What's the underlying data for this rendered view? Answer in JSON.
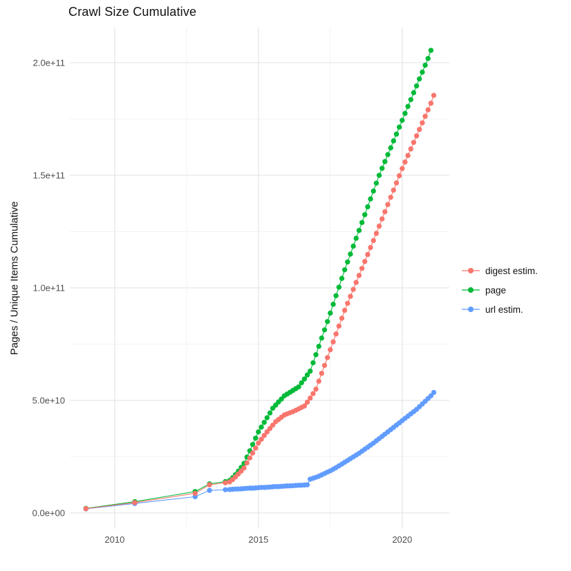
{
  "chart": {
    "title": "Crawl Size Cumulative",
    "y_axis_title": "Pages / Unique Items Cumulative",
    "legend_labels": [
      "digest estim.",
      "page",
      "url estim."
    ]
  },
  "chart_data": {
    "type": "line",
    "title": "Crawl Size Cumulative",
    "xlabel": "",
    "ylabel": "Pages / Unique Items Cumulative",
    "value_unit_note": "y values are in billions (1e9) of pages / unique items",
    "xlim": [
      2008.44,
      2021.64
    ],
    "ylim_e9": [
      -7.1,
      215.6
    ],
    "grid": true,
    "legend_position": "right",
    "colors": {
      "grid_major": "#E7E7E7",
      "grid_minor": "#F1F1F1",
      "tick_label": "#4D4D4D",
      "digest": "#F8766D",
      "page": "#00BA38",
      "url": "#619CFF"
    },
    "x_ticks": [
      {
        "v": 2010,
        "label": "2010"
      },
      {
        "v": 2015,
        "label": "2015"
      },
      {
        "v": 2020,
        "label": "2020"
      }
    ],
    "x_minor": [
      2012.5,
      2017.5
    ],
    "y_ticks": [
      {
        "v": 0,
        "label": "0.0e+00"
      },
      {
        "v": 50,
        "label": "5.0e+10"
      },
      {
        "v": 100,
        "label": "1.0e+11"
      },
      {
        "v": 150,
        "label": "1.5e+11"
      },
      {
        "v": 200,
        "label": "2.0e+11"
      }
    ],
    "y_minor": [
      25,
      75,
      125,
      175
    ],
    "series": [
      {
        "name": "digest estim.",
        "color": "#F8766D",
        "z": 3,
        "points": [
          [
            2009.0,
            1.9
          ],
          [
            2010.7,
            4.6
          ],
          [
            2012.8,
            8.7
          ],
          [
            2013.3,
            12.5
          ],
          [
            2013.85,
            13.4
          ],
          [
            2014.0,
            13.8
          ],
          [
            2014.1,
            14.8
          ],
          [
            2014.2,
            16.0
          ],
          [
            2014.3,
            17.3
          ],
          [
            2014.4,
            18.6
          ],
          [
            2014.5,
            20.0
          ],
          [
            2014.6,
            22.2
          ],
          [
            2014.7,
            24.4
          ],
          [
            2014.8,
            26.6
          ],
          [
            2014.9,
            28.8
          ],
          [
            2015.0,
            31.0
          ],
          [
            2015.1,
            32.7
          ],
          [
            2015.2,
            34.4
          ],
          [
            2015.3,
            36.0
          ],
          [
            2015.4,
            37.5
          ],
          [
            2015.5,
            39.0
          ],
          [
            2015.6,
            40.5
          ],
          [
            2015.7,
            41.5
          ],
          [
            2015.8,
            42.5
          ],
          [
            2015.9,
            43.5
          ],
          [
            2016.0,
            44.0
          ],
          [
            2016.1,
            44.5
          ],
          [
            2016.2,
            45.0
          ],
          [
            2016.3,
            45.6
          ],
          [
            2016.4,
            46.2
          ],
          [
            2016.5,
            46.9
          ],
          [
            2016.6,
            47.5
          ],
          [
            2016.7,
            49.2
          ],
          [
            2016.8,
            51.0
          ],
          [
            2016.9,
            53.0
          ],
          [
            2017.0,
            55.0
          ],
          [
            2017.1,
            58.5
          ],
          [
            2017.2,
            62.0
          ],
          [
            2017.3,
            65.5
          ],
          [
            2017.4,
            69.0
          ],
          [
            2017.5,
            72.5
          ],
          [
            2017.6,
            76.0
          ],
          [
            2017.7,
            79.5
          ],
          [
            2017.8,
            83.0
          ],
          [
            2017.9,
            86.5
          ],
          [
            2018.0,
            90.0
          ],
          [
            2018.1,
            93.1
          ],
          [
            2018.2,
            96.2
          ],
          [
            2018.3,
            99.3
          ],
          [
            2018.4,
            102.4
          ],
          [
            2018.5,
            105.5
          ],
          [
            2018.6,
            108.6
          ],
          [
            2018.7,
            111.7
          ],
          [
            2018.8,
            114.8
          ],
          [
            2018.9,
            117.9
          ],
          [
            2019.0,
            121.0
          ],
          [
            2019.1,
            124.2
          ],
          [
            2019.2,
            127.4
          ],
          [
            2019.3,
            130.6
          ],
          [
            2019.4,
            133.8
          ],
          [
            2019.5,
            137.0
          ],
          [
            2019.6,
            140.2
          ],
          [
            2019.7,
            143.4
          ],
          [
            2019.8,
            146.6
          ],
          [
            2019.9,
            149.8
          ],
          [
            2020.0,
            153.0
          ],
          [
            2020.1,
            155.9
          ],
          [
            2020.2,
            158.8
          ],
          [
            2020.3,
            161.7
          ],
          [
            2020.4,
            164.6
          ],
          [
            2020.5,
            167.5
          ],
          [
            2020.6,
            170.4
          ],
          [
            2020.7,
            173.3
          ],
          [
            2020.8,
            176.2
          ],
          [
            2020.9,
            179.1
          ],
          [
            2021.0,
            182.0
          ],
          [
            2021.1,
            185.5
          ]
        ]
      },
      {
        "name": "page",
        "color": "#00BA38",
        "z": 1,
        "points": [
          [
            2009.0,
            2.0
          ],
          [
            2010.7,
            5.0
          ],
          [
            2012.8,
            9.5
          ],
          [
            2013.3,
            12.9
          ],
          [
            2013.85,
            13.9
          ],
          [
            2014.0,
            14.4
          ],
          [
            2014.1,
            15.6
          ],
          [
            2014.2,
            17.0
          ],
          [
            2014.3,
            18.5
          ],
          [
            2014.4,
            20.2
          ],
          [
            2014.5,
            22.0
          ],
          [
            2014.6,
            24.8
          ],
          [
            2014.7,
            27.6
          ],
          [
            2014.8,
            30.4
          ],
          [
            2014.9,
            33.2
          ],
          [
            2015.0,
            36.0
          ],
          [
            2015.1,
            38.1
          ],
          [
            2015.2,
            40.2
          ],
          [
            2015.3,
            42.3
          ],
          [
            2015.4,
            44.4
          ],
          [
            2015.5,
            46.5
          ],
          [
            2015.6,
            47.9
          ],
          [
            2015.7,
            49.3
          ],
          [
            2015.8,
            50.6
          ],
          [
            2015.9,
            52.0
          ],
          [
            2016.0,
            52.8
          ],
          [
            2016.1,
            53.6
          ],
          [
            2016.2,
            54.4
          ],
          [
            2016.3,
            55.2
          ],
          [
            2016.4,
            56.0
          ],
          [
            2016.5,
            57.8
          ],
          [
            2016.6,
            59.5
          ],
          [
            2016.7,
            61.3
          ],
          [
            2016.8,
            63.0
          ],
          [
            2016.9,
            66.7
          ],
          [
            2017.0,
            70.3
          ],
          [
            2017.1,
            74.0
          ],
          [
            2017.2,
            77.7
          ],
          [
            2017.3,
            81.3
          ],
          [
            2017.4,
            85.0
          ],
          [
            2017.5,
            88.8
          ],
          [
            2017.6,
            92.7
          ],
          [
            2017.7,
            96.5
          ],
          [
            2017.8,
            100.3
          ],
          [
            2017.9,
            104.2
          ],
          [
            2018.0,
            108.0
          ],
          [
            2018.1,
            111.5
          ],
          [
            2018.2,
            115.0
          ],
          [
            2018.3,
            118.5
          ],
          [
            2018.4,
            122.0
          ],
          [
            2018.5,
            125.5
          ],
          [
            2018.6,
            129.0
          ],
          [
            2018.7,
            132.5
          ],
          [
            2018.8,
            136.0
          ],
          [
            2018.9,
            139.5
          ],
          [
            2019.0,
            143.0
          ],
          [
            2019.1,
            146.5
          ],
          [
            2019.2,
            150.0
          ],
          [
            2019.3,
            153.1
          ],
          [
            2019.4,
            156.1
          ],
          [
            2019.5,
            159.2
          ],
          [
            2019.6,
            162.2
          ],
          [
            2019.7,
            165.3
          ],
          [
            2019.8,
            168.3
          ],
          [
            2019.9,
            171.4
          ],
          [
            2020.0,
            174.4
          ],
          [
            2020.1,
            177.5
          ],
          [
            2020.2,
            180.6
          ],
          [
            2020.3,
            183.6
          ],
          [
            2020.4,
            186.7
          ],
          [
            2020.5,
            189.7
          ],
          [
            2020.6,
            192.8
          ],
          [
            2020.7,
            195.8
          ],
          [
            2020.8,
            198.9
          ],
          [
            2020.9,
            201.9
          ],
          [
            2021.0,
            205.5
          ]
        ]
      },
      {
        "name": "url estim.",
        "color": "#619CFF",
        "z": 2,
        "points": [
          [
            2009.0,
            1.8
          ],
          [
            2010.7,
            4.2
          ],
          [
            2012.8,
            7.2
          ],
          [
            2013.3,
            10.0
          ],
          [
            2013.85,
            10.3
          ],
          [
            2014.0,
            10.4
          ],
          [
            2014.1,
            10.5
          ],
          [
            2014.2,
            10.6
          ],
          [
            2014.3,
            10.6
          ],
          [
            2014.4,
            10.7
          ],
          [
            2014.5,
            10.8
          ],
          [
            2014.6,
            10.9
          ],
          [
            2014.7,
            11.0
          ],
          [
            2014.8,
            11.0
          ],
          [
            2014.9,
            11.1
          ],
          [
            2015.0,
            11.2
          ],
          [
            2015.1,
            11.3
          ],
          [
            2015.2,
            11.3
          ],
          [
            2015.3,
            11.4
          ],
          [
            2015.4,
            11.5
          ],
          [
            2015.5,
            11.6
          ],
          [
            2015.6,
            11.7
          ],
          [
            2015.7,
            11.7
          ],
          [
            2015.8,
            11.8
          ],
          [
            2015.9,
            11.9
          ],
          [
            2016.0,
            12.0
          ],
          [
            2016.1,
            12.0
          ],
          [
            2016.2,
            12.1
          ],
          [
            2016.3,
            12.2
          ],
          [
            2016.4,
            12.3
          ],
          [
            2016.5,
            12.3
          ],
          [
            2016.6,
            12.4
          ],
          [
            2016.7,
            12.5
          ],
          [
            2016.8,
            15.0
          ],
          [
            2016.9,
            15.4
          ],
          [
            2017.0,
            15.8
          ],
          [
            2017.1,
            16.3
          ],
          [
            2017.2,
            16.9
          ],
          [
            2017.3,
            17.5
          ],
          [
            2017.4,
            18.1
          ],
          [
            2017.5,
            18.7
          ],
          [
            2017.6,
            19.4
          ],
          [
            2017.7,
            20.1
          ],
          [
            2017.8,
            20.9
          ],
          [
            2017.9,
            21.7
          ],
          [
            2018.0,
            22.5
          ],
          [
            2018.1,
            23.3
          ],
          [
            2018.2,
            24.1
          ],
          [
            2018.3,
            24.9
          ],
          [
            2018.4,
            25.7
          ],
          [
            2018.5,
            26.5
          ],
          [
            2018.6,
            27.4
          ],
          [
            2018.7,
            28.3
          ],
          [
            2018.8,
            29.2
          ],
          [
            2018.9,
            30.1
          ],
          [
            2019.0,
            31.0
          ],
          [
            2019.1,
            32.0
          ],
          [
            2019.2,
            33.0
          ],
          [
            2019.3,
            34.0
          ],
          [
            2019.4,
            35.0
          ],
          [
            2019.5,
            36.0
          ],
          [
            2019.6,
            37.0
          ],
          [
            2019.7,
            38.0
          ],
          [
            2019.8,
            39.0
          ],
          [
            2019.9,
            40.0
          ],
          [
            2020.0,
            41.0
          ],
          [
            2020.1,
            42.0
          ],
          [
            2020.2,
            43.0
          ],
          [
            2020.3,
            44.0
          ],
          [
            2020.4,
            45.0
          ],
          [
            2020.5,
            46.0
          ],
          [
            2020.6,
            47.2
          ],
          [
            2020.7,
            48.4
          ],
          [
            2020.8,
            49.6
          ],
          [
            2020.9,
            50.8
          ],
          [
            2021.0,
            52.0
          ],
          [
            2021.1,
            53.5
          ]
        ]
      }
    ]
  }
}
